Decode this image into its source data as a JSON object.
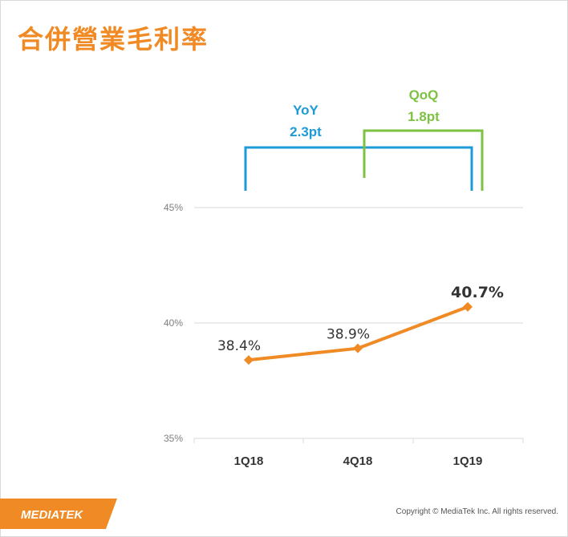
{
  "page": {
    "title": "合併營業毛利率",
    "copyright": "Copyright © MediaTek Inc. All rights reserved.",
    "logo_text": "MEDIATEK"
  },
  "colors": {
    "title": "#f08a24",
    "line": "#f08a24",
    "yoy": "#1e9bd7",
    "qoq": "#7dc242",
    "grid": "#d9d9d9",
    "axis_text": "#7f7f7f",
    "label_text": "#333333",
    "logo_bg": "#f08a24"
  },
  "annotations": {
    "yoy": {
      "label": "YoY",
      "value": "2.3pt",
      "from": "1Q18",
      "to": "1Q19"
    },
    "qoq": {
      "label": "QoQ",
      "value": "1.8pt",
      "from": "4Q18",
      "to": "1Q19"
    }
  },
  "chart_data": {
    "type": "line",
    "title": "合併營業毛利率",
    "categories": [
      "1Q18",
      "4Q18",
      "1Q19"
    ],
    "values": [
      38.4,
      38.9,
      40.7
    ],
    "data_labels": [
      "38.4%",
      "38.9%",
      "40.7%"
    ],
    "yticks": [
      35,
      40,
      45
    ],
    "ytick_labels": [
      "35%",
      "40%",
      "45%"
    ],
    "ylim": [
      35,
      45
    ],
    "grid": true,
    "xlabel": "",
    "ylabel": ""
  }
}
